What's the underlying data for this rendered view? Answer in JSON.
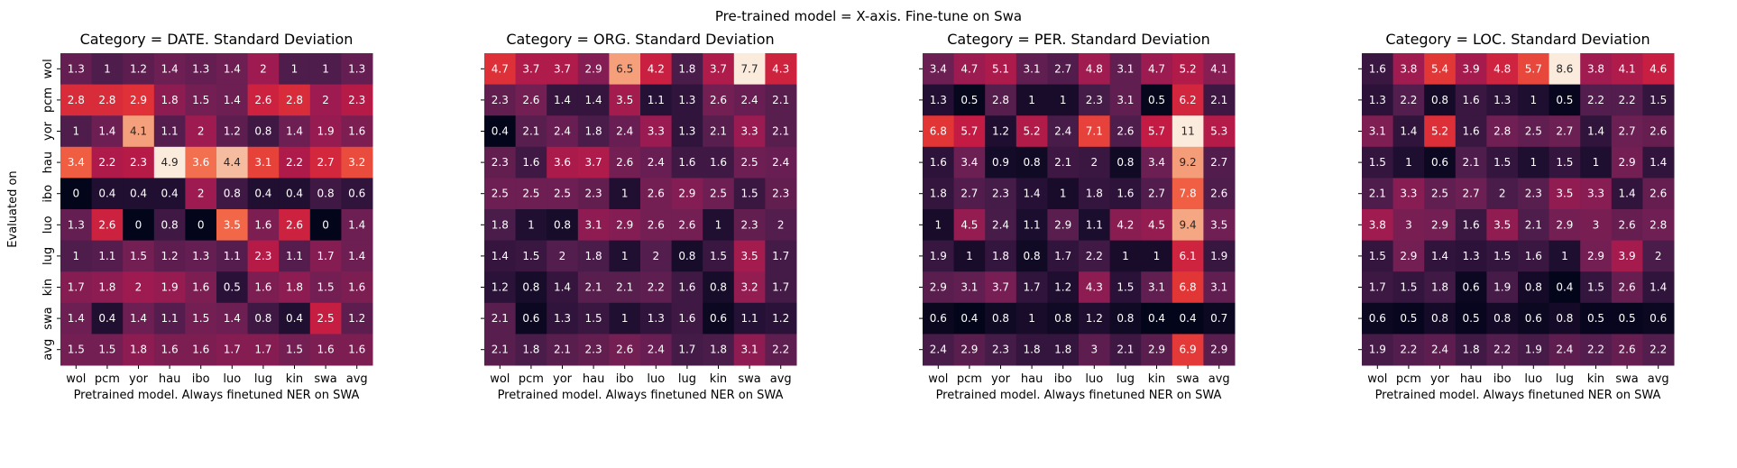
{
  "figure": {
    "suptitle": "Pre-trained model = X-axis. Fine-tune on Swa"
  },
  "chart_data": [
    {
      "type": "heatmap",
      "title": "Category = DATE. Standard Deviation",
      "xlabel": "Pretrained model. Always finetuned NER on SWA",
      "ylabel": "Evaluated on",
      "x_categories": [
        "wol",
        "pcm",
        "yor",
        "hau",
        "ibo",
        "luo",
        "lug",
        "kin",
        "swa",
        "avg"
      ],
      "y_categories": [
        "wol",
        "pcm",
        "yor",
        "hau",
        "ibo",
        "luo",
        "lug",
        "kin",
        "swa",
        "avg"
      ],
      "colorbar": "none",
      "values": [
        [
          1.3,
          1,
          1.2,
          1.4,
          1.3,
          1.4,
          2,
          1,
          1,
          1.3
        ],
        [
          2.8,
          2.8,
          2.9,
          1.8,
          1.5,
          1.4,
          2.6,
          2.8,
          2,
          2.3
        ],
        [
          1,
          1.4,
          4.1,
          1.1,
          2,
          1.2,
          0.8,
          1.4,
          1.9,
          1.6
        ],
        [
          3.4,
          2.2,
          2.3,
          4.9,
          3.6,
          4.4,
          3.1,
          2.2,
          2.7,
          3.2
        ],
        [
          0,
          0.4,
          0.4,
          0.4,
          2,
          0.8,
          0.4,
          0.4,
          0.8,
          0.6
        ],
        [
          1.3,
          2.6,
          0,
          0.8,
          0,
          3.5,
          1.6,
          2.6,
          0,
          1.4
        ],
        [
          1,
          1.1,
          1.5,
          1.2,
          1.3,
          1.1,
          2.3,
          1.1,
          1.7,
          1.4
        ],
        [
          1.7,
          1.8,
          2,
          1.9,
          1.6,
          0.5,
          1.6,
          1.8,
          1.5,
          1.6
        ],
        [
          1.4,
          0.4,
          1.4,
          1.1,
          1.5,
          1.4,
          0.8,
          0.4,
          2.5,
          1.2
        ],
        [
          1.5,
          1.5,
          1.8,
          1.6,
          1.6,
          1.7,
          1.7,
          1.5,
          1.6,
          1.6
        ]
      ]
    },
    {
      "type": "heatmap",
      "title": "Category = ORG. Standard Deviation",
      "xlabel": "Pretrained model. Always finetuned NER on SWA",
      "ylabel": "",
      "x_categories": [
        "wol",
        "pcm",
        "yor",
        "hau",
        "ibo",
        "luo",
        "lug",
        "kin",
        "swa",
        "avg"
      ],
      "y_categories": [
        "wol",
        "pcm",
        "yor",
        "hau",
        "ibo",
        "luo",
        "lug",
        "kin",
        "swa",
        "avg"
      ],
      "colorbar": "none",
      "values": [
        [
          4.7,
          3.7,
          3.7,
          2.9,
          6.5,
          4.2,
          1.8,
          3.7,
          7.7,
          4.3
        ],
        [
          2.3,
          2.6,
          1.4,
          1.4,
          3.5,
          1.1,
          1.3,
          2.6,
          2.4,
          2.1
        ],
        [
          0.4,
          2.1,
          2.4,
          1.8,
          2.4,
          3.3,
          1.3,
          2.1,
          3.3,
          2.1
        ],
        [
          2.3,
          1.6,
          3.6,
          3.7,
          2.6,
          2.4,
          1.6,
          1.6,
          2.5,
          2.4
        ],
        [
          2.5,
          2.5,
          2.5,
          2.3,
          1,
          2.6,
          2.9,
          2.5,
          1.5,
          2.3
        ],
        [
          1.8,
          1,
          0.8,
          3.1,
          2.9,
          2.6,
          2.6,
          1,
          2.3,
          2
        ],
        [
          1.4,
          1.5,
          2,
          1.8,
          1,
          2,
          0.8,
          1.5,
          3.5,
          1.7
        ],
        [
          1.2,
          0.8,
          1.4,
          2.1,
          2.1,
          2.2,
          1.6,
          0.8,
          3.2,
          1.7
        ],
        [
          2.1,
          0.6,
          1.3,
          1.5,
          1,
          1.3,
          1.6,
          0.6,
          1.1,
          1.2
        ],
        [
          2.1,
          1.8,
          2.1,
          2.3,
          2.6,
          2.4,
          1.7,
          1.8,
          3.1,
          2.2
        ]
      ]
    },
    {
      "type": "heatmap",
      "title": "Category = PER. Standard Deviation",
      "xlabel": "Pretrained model. Always finetuned NER on SWA",
      "ylabel": "",
      "x_categories": [
        "wol",
        "pcm",
        "yor",
        "hau",
        "ibo",
        "luo",
        "lug",
        "kin",
        "swa",
        "avg"
      ],
      "y_categories": [
        "wol",
        "pcm",
        "yor",
        "hau",
        "ibo",
        "luo",
        "lug",
        "kin",
        "swa",
        "avg"
      ],
      "colorbar": "none",
      "values": [
        [
          3.4,
          4.7,
          5.1,
          3.1,
          2.7,
          4.8,
          3.1,
          4.7,
          5.2,
          4.1
        ],
        [
          1.3,
          0.5,
          2.8,
          1,
          1,
          2.3,
          3.1,
          0.5,
          6.2,
          2.1
        ],
        [
          6.8,
          5.7,
          1.2,
          5.2,
          2.4,
          7.1,
          2.6,
          5.7,
          11,
          5.3
        ],
        [
          1.6,
          3.4,
          0.9,
          0.8,
          2.1,
          2,
          0.8,
          3.4,
          9.2,
          2.7
        ],
        [
          1.8,
          2.7,
          2.3,
          1.4,
          1,
          1.8,
          1.6,
          2.7,
          7.8,
          2.6
        ],
        [
          1,
          4.5,
          2.4,
          1.1,
          2.9,
          1.1,
          4.2,
          4.5,
          9.4,
          3.5
        ],
        [
          1.9,
          1,
          1.8,
          0.8,
          1.7,
          2.2,
          1,
          1,
          6.1,
          1.9
        ],
        [
          2.9,
          3.1,
          3.7,
          1.7,
          1.2,
          4.3,
          1.5,
          3.1,
          6.8,
          3.1
        ],
        [
          0.6,
          0.4,
          0.8,
          1,
          0.8,
          1.2,
          0.8,
          0.4,
          0.4,
          0.7
        ],
        [
          2.4,
          2.9,
          2.3,
          1.8,
          1.8,
          3,
          2.1,
          2.9,
          6.9,
          2.9
        ]
      ]
    },
    {
      "type": "heatmap",
      "title": "Category = LOC. Standard Deviation",
      "xlabel": "Pretrained model. Always finetuned NER on SWA",
      "ylabel": "",
      "x_categories": [
        "wol",
        "pcm",
        "yor",
        "hau",
        "ibo",
        "luo",
        "lug",
        "kin",
        "swa",
        "avg"
      ],
      "y_categories": [
        "wol",
        "pcm",
        "yor",
        "hau",
        "ibo",
        "luo",
        "lug",
        "kin",
        "swa",
        "avg"
      ],
      "colorbar": "none",
      "values": [
        [
          1.6,
          3.8,
          5.4,
          3.9,
          4.8,
          5.7,
          8.6,
          3.8,
          4.1,
          4.6
        ],
        [
          1.3,
          2.2,
          0.8,
          1.6,
          1.3,
          1,
          0.5,
          2.2,
          2.2,
          1.5
        ],
        [
          3.1,
          1.4,
          5.2,
          1.6,
          2.8,
          2.5,
          2.7,
          1.4,
          2.7,
          2.6
        ],
        [
          1.5,
          1,
          0.6,
          2.1,
          1.5,
          1,
          1.5,
          1,
          2.9,
          1.4
        ],
        [
          2.1,
          3.3,
          2.5,
          2.7,
          2,
          2.3,
          3.5,
          3.3,
          1.4,
          2.6
        ],
        [
          3.8,
          3,
          2.9,
          1.6,
          3.5,
          2.1,
          2.9,
          3,
          2.6,
          2.8
        ],
        [
          1.5,
          2.9,
          1.4,
          1.3,
          1.5,
          1.6,
          1,
          2.9,
          3.9,
          2
        ],
        [
          1.7,
          1.5,
          1.8,
          0.6,
          1.9,
          0.8,
          0.4,
          1.5,
          2.6,
          1.4
        ],
        [
          0.6,
          0.5,
          0.8,
          0.5,
          0.8,
          0.6,
          0.8,
          0.5,
          0.5,
          0.6
        ],
        [
          1.9,
          2.2,
          2.4,
          1.8,
          2.2,
          1.9,
          2.4,
          2.2,
          2.6,
          2.2
        ]
      ]
    }
  ]
}
